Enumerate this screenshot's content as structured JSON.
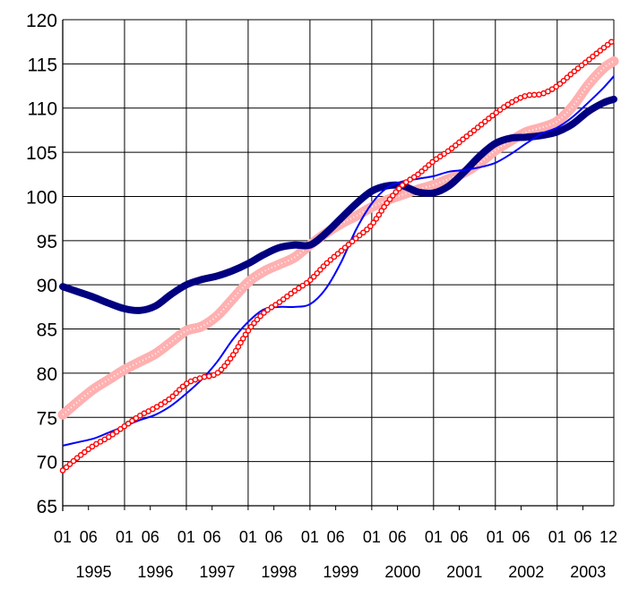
{
  "chart_data": {
    "type": "line",
    "title": "",
    "xlabel": "",
    "ylabel": "",
    "grid": true,
    "legend": "none",
    "x_range": [
      1995.0,
      2003.9167
    ],
    "ylim": [
      65,
      120
    ],
    "y_ticks": [
      65,
      70,
      75,
      80,
      85,
      90,
      95,
      100,
      105,
      110,
      115,
      120
    ],
    "x_tick_labels": [
      "01",
      "06",
      "01",
      "06",
      "01",
      "06",
      "01",
      "06",
      "01",
      "06",
      "01",
      "06",
      "01",
      "06",
      "01",
      "06",
      "01",
      "06",
      "12"
    ],
    "year_labels": [
      "1995",
      "1996",
      "1997",
      "1998",
      "1999",
      "2000",
      "2001",
      "2002",
      "2003"
    ],
    "series": [
      {
        "color": "#000080",
        "style": "thick",
        "x": [
          1995.0,
          1995.25,
          1995.5,
          1995.75,
          1996.0,
          1996.25,
          1996.5,
          1996.75,
          1997.0,
          1997.25,
          1997.5,
          1997.75,
          1998.0,
          1998.25,
          1998.5,
          1998.75,
          1999.0,
          1999.25,
          1999.5,
          1999.75,
          2000.0,
          2000.25,
          2000.5,
          2000.75,
          2001.0,
          2001.25,
          2001.5,
          2001.75,
          2002.0,
          2002.25,
          2002.5,
          2002.75,
          2003.0,
          2003.25,
          2003.5,
          2003.75,
          2003.9167
        ],
        "values": [
          89.8,
          89.2,
          88.6,
          87.9,
          87.3,
          87.1,
          87.6,
          88.9,
          90.0,
          90.6,
          91.0,
          91.6,
          92.4,
          93.4,
          94.2,
          94.5,
          94.5,
          95.8,
          97.5,
          99.2,
          100.6,
          101.2,
          101.2,
          100.5,
          100.4,
          101.2,
          102.8,
          104.6,
          106.0,
          106.6,
          106.7,
          106.9,
          107.3,
          108.2,
          109.6,
          110.6,
          111.0
        ]
      },
      {
        "color": "#0000ff",
        "style": "thin",
        "x": [
          1995.0,
          1995.25,
          1995.5,
          1995.75,
          1996.0,
          1996.25,
          1996.5,
          1996.75,
          1997.0,
          1997.25,
          1997.5,
          1997.75,
          1998.0,
          1998.25,
          1998.5,
          1998.75,
          1999.0,
          1999.25,
          1999.5,
          1999.75,
          2000.0,
          2000.25,
          2000.5,
          2000.75,
          2001.0,
          2001.25,
          2001.5,
          2001.75,
          2002.0,
          2002.25,
          2002.5,
          2002.75,
          2003.0,
          2003.25,
          2003.5,
          2003.75,
          2003.9167
        ],
        "values": [
          71.8,
          72.2,
          72.6,
          73.3,
          74.0,
          74.7,
          75.3,
          76.3,
          77.7,
          79.3,
          81.3,
          83.8,
          85.8,
          87.2,
          87.5,
          87.5,
          87.8,
          89.5,
          92.5,
          96.3,
          99.2,
          101.0,
          101.7,
          102.0,
          102.3,
          102.8,
          103.0,
          103.3,
          103.8,
          104.8,
          106.0,
          107.1,
          107.8,
          109.0,
          110.6,
          112.3,
          113.6
        ]
      },
      {
        "color": "#ff0000",
        "style": "circles",
        "x": [
          1995.0,
          1995.25,
          1995.5,
          1995.75,
          1996.0,
          1996.25,
          1996.5,
          1996.75,
          1997.0,
          1997.25,
          1997.5,
          1997.75,
          1998.0,
          1998.25,
          1998.5,
          1998.75,
          1999.0,
          1999.25,
          1999.5,
          1999.75,
          2000.0,
          2000.25,
          2000.5,
          2000.75,
          2001.0,
          2001.25,
          2001.5,
          2001.75,
          2002.0,
          2002.25,
          2002.5,
          2002.75,
          2003.0,
          2003.25,
          2003.5,
          2003.75,
          2003.9167
        ],
        "values": [
          69.0,
          70.5,
          71.8,
          72.8,
          74.0,
          75.2,
          76.1,
          77.2,
          78.8,
          79.5,
          80.0,
          82.0,
          84.8,
          86.8,
          88.0,
          89.3,
          90.5,
          92.3,
          93.8,
          95.3,
          96.8,
          99.3,
          101.3,
          102.5,
          104.0,
          105.2,
          106.6,
          108.0,
          109.4,
          110.6,
          111.4,
          111.6,
          112.5,
          114.0,
          115.4,
          116.8,
          117.7
        ]
      },
      {
        "color": "#ffb0b0",
        "style": "band",
        "x": [
          1995.0,
          1995.25,
          1995.5,
          1995.75,
          1996.0,
          1996.25,
          1996.5,
          1996.75,
          1997.0,
          1997.25,
          1997.5,
          1997.75,
          1998.0,
          1998.25,
          1998.5,
          1998.75,
          1999.0,
          1999.25,
          1999.5,
          1999.75,
          2000.0,
          2000.25,
          2000.5,
          2000.75,
          2001.0,
          2001.25,
          2001.5,
          2001.75,
          2002.0,
          2002.25,
          2002.5,
          2002.75,
          2003.0,
          2003.25,
          2003.5,
          2003.75,
          2003.9167
        ],
        "values": [
          75.3,
          76.8,
          78.2,
          79.3,
          80.4,
          81.3,
          82.2,
          83.5,
          84.8,
          85.3,
          86.5,
          88.4,
          90.3,
          91.5,
          92.3,
          93.1,
          94.5,
          95.8,
          96.9,
          97.8,
          98.8,
          99.6,
          100.2,
          100.8,
          101.3,
          102.0,
          102.7,
          103.8,
          105.2,
          106.3,
          107.3,
          107.8,
          108.5,
          110.2,
          112.6,
          114.5,
          115.3
        ]
      }
    ]
  }
}
